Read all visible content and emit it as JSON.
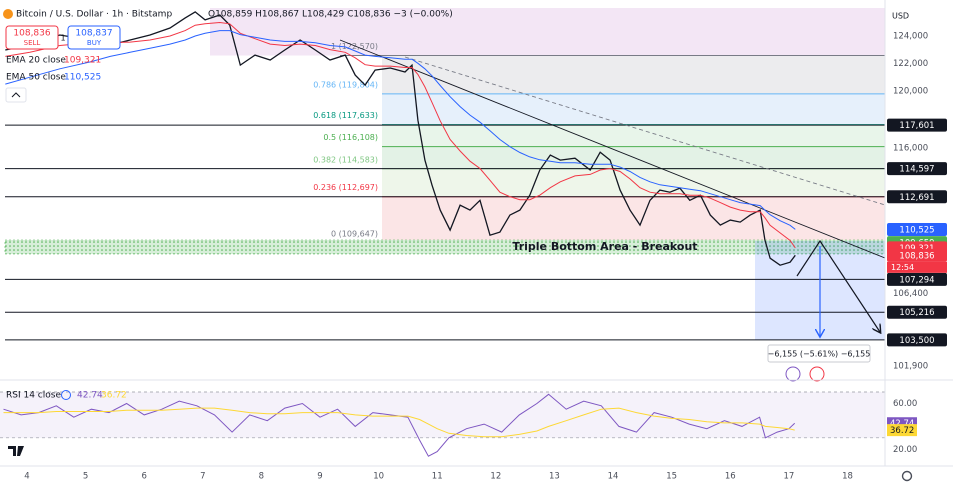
{
  "header": {
    "title": "Bitcoin / U.S. Dollar · 1h · Bitstamp",
    "ohlc": "O108,859 H108,867 L108,429 C108,836 −3 (−0.00%)",
    "sell_price": "108,836",
    "sell": "SELL",
    "qty": "1",
    "buy_price": "108,837",
    "buy": "BUY",
    "currency": "USD"
  },
  "chart_data": [
    {
      "type": "line",
      "log_y": true,
      "x": [
        3.63,
        4.05,
        4.56,
        5.08,
        5.42,
        5.76,
        6.1,
        6.44,
        6.7,
        6.87,
        7.04,
        7.29,
        7.46,
        7.64,
        7.89,
        8.15,
        8.4,
        8.66,
        8.92,
        9.17,
        9.43,
        9.6,
        9.77,
        9.94,
        10.2,
        10.45,
        10.57,
        10.67,
        10.79,
        10.91,
        11.05,
        11.22,
        11.39,
        11.56,
        11.73,
        11.9,
        12.07,
        12.24,
        12.41,
        12.58,
        12.75,
        12.93,
        13.1,
        13.35,
        13.61,
        13.78,
        13.95,
        14.12,
        14.29,
        14.46,
        14.63,
        14.8,
        14.97,
        15.14,
        15.31,
        15.49,
        15.66,
        15.83,
        16.0,
        16.17,
        16.34,
        16.51,
        16.59,
        16.68,
        16.85,
        17.02,
        17.11
      ],
      "xlim": [
        3.54,
        18.64
      ],
      "xticks": [
        4,
        5,
        6,
        7,
        8,
        9,
        10,
        11,
        12,
        13,
        14,
        15,
        16,
        17,
        18
      ],
      "ylim": [
        101180,
        126080
      ],
      "yticks": [
        {
          "value": 124000,
          "label": "124,000"
        },
        {
          "value": 122000,
          "label": "122,000"
        },
        {
          "value": 120000,
          "label": "120,000"
        },
        {
          "value": 116000,
          "label": "116,000"
        },
        {
          "value": 106400,
          "label": "106,400"
        },
        {
          "value": 101900,
          "label": "101,900"
        }
      ],
      "series": [
        {
          "color": "#131722",
          "values": [
            122970,
            123340,
            124070,
            123700,
            123340,
            123700,
            124070,
            124590,
            125340,
            125790,
            125190,
            125560,
            124810,
            121870,
            122600,
            122240,
            122970,
            123700,
            122970,
            122240,
            122600,
            121150,
            120430,
            121510,
            121660,
            121370,
            121870,
            117950,
            115180,
            113480,
            111800,
            110480,
            112130,
            111800,
            112460,
            110150,
            110350,
            111470,
            111800,
            112800,
            114500,
            115520,
            115180,
            115310,
            114500,
            115720,
            115180,
            113140,
            111800,
            110810,
            112460,
            113140,
            113000,
            113270,
            112460,
            112800,
            111470,
            110810,
            111140,
            111010,
            111470,
            111800,
            109830,
            108650,
            108200,
            108390,
            108836
          ]
        },
        {
          "name": "EMA 20 close",
          "value_label": "109,321",
          "color": "#f23645",
          "values": [
            122500,
            122800,
            123300,
            123500,
            123500,
            123550,
            123700,
            124000,
            124400,
            124800,
            124900,
            125000,
            124900,
            124200,
            123800,
            123400,
            123300,
            123400,
            123300,
            123000,
            122800,
            122400,
            121900,
            121800,
            121800,
            121700,
            121700,
            121200,
            120300,
            119200,
            117900,
            116600,
            115800,
            115100,
            114600,
            113800,
            113000,
            112700,
            112500,
            112500,
            112800,
            113300,
            113700,
            114100,
            114200,
            114500,
            114600,
            114400,
            113900,
            113300,
            113000,
            112900,
            112900,
            112900,
            112800,
            112800,
            112600,
            112300,
            112000,
            111800,
            111700,
            111700,
            111300,
            110800,
            110300,
            109800,
            109321
          ]
        },
        {
          "name": "EMA 50 close",
          "value_label": "110,525",
          "color": "#2962ff",
          "values": [
            120500,
            121000,
            121600,
            122100,
            122500,
            122800,
            123100,
            123400,
            123700,
            124000,
            124200,
            124400,
            124400,
            124100,
            123900,
            123700,
            123600,
            123600,
            123500,
            123300,
            123200,
            122900,
            122600,
            122500,
            122400,
            122300,
            122300,
            122000,
            121600,
            121100,
            120400,
            119600,
            118900,
            118300,
            117800,
            117200,
            116600,
            116100,
            115700,
            115400,
            115200,
            115100,
            115000,
            115000,
            114900,
            114900,
            114900,
            114700,
            114400,
            114000,
            113700,
            113500,
            113400,
            113300,
            113200,
            113100,
            112900,
            112700,
            112500,
            112300,
            112200,
            112100,
            111800,
            111500,
            111100,
            110800,
            110525
          ]
        }
      ],
      "fib_levels": [
        {
          "value": 122570,
          "label": "1 (122,570)",
          "color": "#787b86"
        },
        {
          "value": 119804,
          "label": "0.786 (119,804)",
          "color": "#64b5f6",
          "band": "#ececee"
        },
        {
          "value": 117633,
          "label": "0.618 (117,633)",
          "color": "#089981",
          "band": "#e6f0fb"
        },
        {
          "value": 116108,
          "label": "0.5 (116,108)",
          "color": "#4caf50",
          "band": "#e8f5ea"
        },
        {
          "value": 114583,
          "label": "0.382 (114,583)",
          "color": "#81c784",
          "band": "#e3f2e6"
        },
        {
          "value": 112697,
          "label": "0.236 (112,697)",
          "color": "#f23645",
          "band": "#eef6ea"
        },
        {
          "value": 109647,
          "label": "0 (109,647)",
          "color": "#787b86",
          "band": "#fbe5e6"
        }
      ],
      "levels": [
        {
          "value": 117601,
          "label": "117,601"
        },
        {
          "value": 114597,
          "label": "114,597"
        },
        {
          "value": 112691,
          "label": "112,691"
        },
        {
          "value": 107294,
          "label": "107,294"
        },
        {
          "value": 105216,
          "label": "105,216"
        },
        {
          "value": 103500,
          "label": "103,500"
        }
      ],
      "price_labels": [
        {
          "value": 110525,
          "label": "110,525",
          "color": "#2962ff"
        },
        {
          "value": 109659,
          "label": "109,659",
          "color": "#4caf50"
        },
        {
          "value": 109321,
          "label": "109,321",
          "color": "#f23645"
        },
        {
          "value": 108836,
          "label": "108,836",
          "color": "#f23645"
        }
      ],
      "countdown": "12:54",
      "annotation": "Triple Bottom Area - Breakout",
      "measure": "−6,155 (−5.61%) −6,155"
    },
    {
      "type": "line",
      "title": "RSI 14 close",
      "x": [
        3.6,
        3.9,
        4.2,
        4.5,
        4.8,
        5.1,
        5.4,
        5.7,
        6.0,
        6.3,
        6.6,
        6.9,
        7.2,
        7.5,
        7.8,
        8.1,
        8.4,
        8.7,
        9.0,
        9.3,
        9.6,
        9.9,
        10.2,
        10.5,
        10.7,
        10.85,
        11.0,
        11.2,
        11.5,
        11.8,
        12.1,
        12.4,
        12.7,
        12.9,
        13.2,
        13.5,
        13.8,
        14.1,
        14.4,
        14.7,
        15.0,
        15.3,
        15.6,
        15.9,
        16.2,
        16.5,
        16.6,
        16.8,
        17.0,
        17.1
      ],
      "xlim": [
        3.54,
        18.64
      ],
      "ylim": [
        8.9,
        77
      ],
      "yticks": [
        {
          "value": 60,
          "label": "60.00"
        },
        {
          "value": 20,
          "label": "20.00"
        }
      ],
      "hlines": [
        70,
        30
      ],
      "series": [
        {
          "color": "#7e57c2",
          "values": [
            55,
            50,
            52,
            58,
            48,
            55,
            52,
            60,
            50,
            55,
            62,
            58,
            50,
            35,
            50,
            45,
            56,
            60,
            48,
            55,
            40,
            52,
            50,
            48,
            28,
            14,
            18,
            30,
            38,
            42,
            35,
            50,
            60,
            68,
            55,
            62,
            58,
            40,
            35,
            52,
            48,
            42,
            38,
            45,
            40,
            48,
            30,
            35,
            38,
            42.74
          ]
        },
        {
          "color": "#fdd835",
          "values": [
            52,
            52,
            52,
            53,
            53,
            53,
            53,
            54,
            54,
            54,
            55,
            56,
            56,
            54,
            52,
            51,
            51,
            52,
            52,
            52,
            50,
            49,
            49,
            49,
            46,
            42,
            38,
            34,
            32,
            31,
            31,
            33,
            36,
            40,
            45,
            50,
            55,
            56,
            52,
            49,
            47,
            46,
            44,
            43,
            43,
            42,
            40,
            39,
            38,
            36.72
          ]
        }
      ]
    }
  ]
}
